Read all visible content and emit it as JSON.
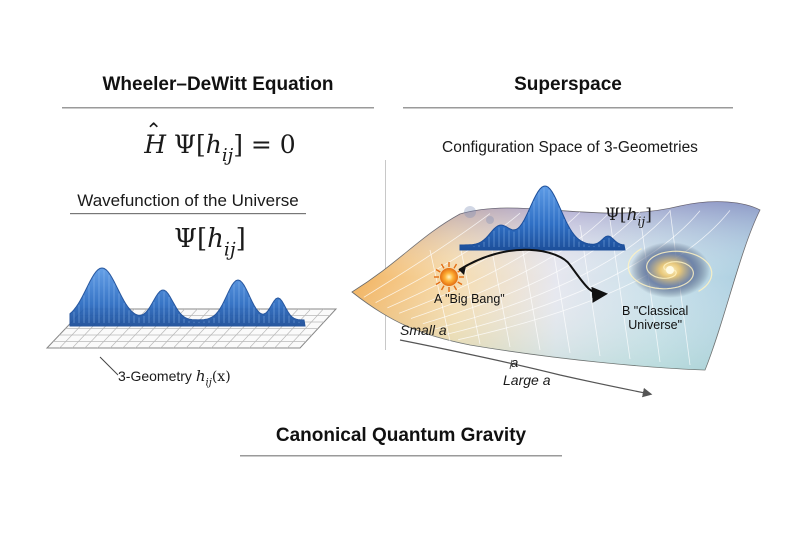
{
  "left_panel": {
    "heading": "Wheeler–DeWitt Equation",
    "equation": {
      "operator": "H",
      "psi": "Ψ",
      "open": "[",
      "h": "h",
      "sub": "ij",
      "close": "]",
      "rhs": "= 0"
    },
    "caption": "Wavefunction of the Universe",
    "wavefunction": {
      "psi": "Ψ",
      "open": "[",
      "h": "h",
      "sub": "ij",
      "close": "]"
    },
    "axis_label": {
      "text": "3-Geometry ",
      "h": "h",
      "sub": "ij",
      "arg": "(x)"
    }
  },
  "right_panel": {
    "heading": "Superspace",
    "subtitle": "Configuration Space of 3-Geometries",
    "psi_label": {
      "psi": "Ψ",
      "open": "[",
      "h": "h",
      "sub": "ij",
      "close": "]"
    },
    "point_a": "A \"Big Bang\"",
    "point_b_line1": "B \"Classical",
    "point_b_line2": "Universe\"",
    "small_a": "Small a",
    "mid_a": "a",
    "large_a": "Large a"
  },
  "footer": {
    "title": "Canonical Quantum Gravity"
  },
  "colors": {
    "wave_blue": "#2f6fc4",
    "wave_dark": "#1d4f9a",
    "rule_gray": "#9a9a9a",
    "sun_orange": "#f08a1c"
  }
}
